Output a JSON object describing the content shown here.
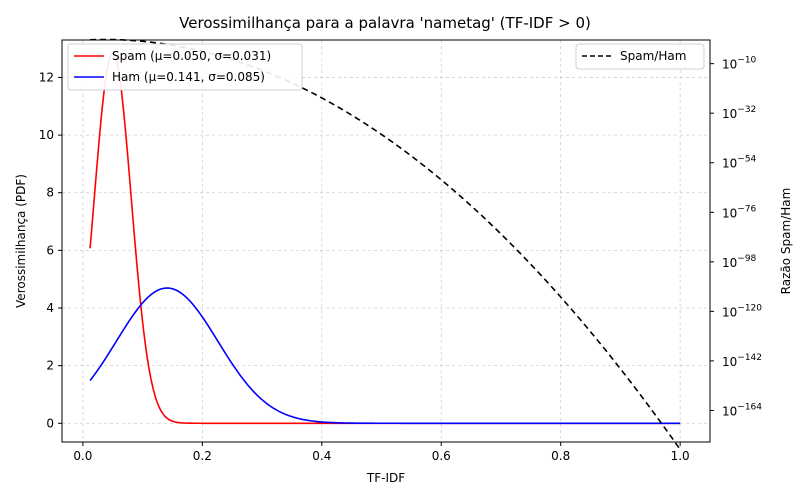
{
  "chart_data": {
    "type": "line",
    "title": "Verossimilhança para a palavra 'nametag' (TF-IDF > 0)",
    "xlabel": "TF-IDF",
    "ylabel_left": "Verossimilhança (PDF)",
    "ylabel_right": "Razão Spam/Ham",
    "xlim": [
      -0.035,
      1.05
    ],
    "ylim_left": [
      -0.65,
      13.3
    ],
    "ylim_right_log10": [
      -178,
      0.5
    ],
    "x_range": [
      0.012,
      1.0
    ],
    "x_ticks": [
      0.0,
      0.2,
      0.4,
      0.6,
      0.8,
      1.0
    ],
    "x_tick_labels": [
      "0.0",
      "0.2",
      "0.4",
      "0.6",
      "0.8",
      "1.0"
    ],
    "y_left_ticks": [
      0,
      2,
      4,
      6,
      8,
      10,
      12
    ],
    "y_left_tick_labels": [
      "0",
      "2",
      "4",
      "6",
      "8",
      "10",
      "12"
    ],
    "y_right_ticks_exp": [
      -10,
      -32,
      -54,
      -76,
      -98,
      -120,
      -142,
      -164
    ],
    "y_right_tick_base": "10",
    "grid": true,
    "series": [
      {
        "name": "Spam (μ=0.050, σ=0.031)",
        "distribution": "normal",
        "mu": 0.05,
        "sigma": 0.031,
        "color": "#ff0000",
        "axis": "left",
        "style": "solid"
      },
      {
        "name": "Ham (μ=0.141, σ=0.085)",
        "distribution": "normal",
        "mu": 0.141,
        "sigma": 0.085,
        "color": "#0000ff",
        "axis": "left",
        "style": "solid"
      },
      {
        "name": "Spam/Ham",
        "distribution": "ratio",
        "of": [
          "Spam (μ=0.050, σ=0.031)",
          "Ham (μ=0.141, σ=0.085)"
        ],
        "color": "#000000",
        "axis": "right",
        "scale": "log",
        "style": "dashed"
      }
    ],
    "legend_left": {
      "placement": "top-left",
      "entries": [
        "Spam (μ=0.050, σ=0.031)",
        "Ham (μ=0.141, σ=0.085)"
      ]
    },
    "legend_right": {
      "placement": "top-right",
      "entries": [
        "Spam/Ham"
      ]
    }
  }
}
